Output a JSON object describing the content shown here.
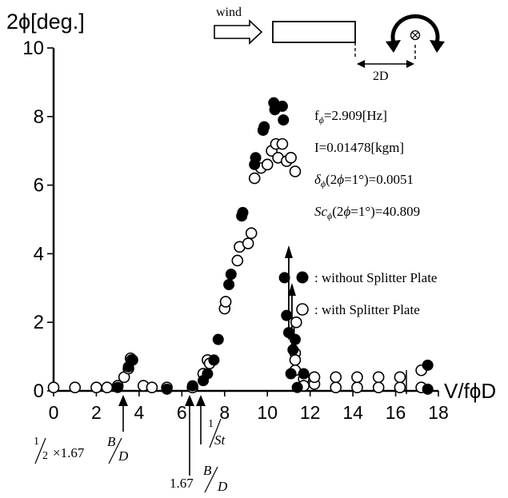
{
  "chart_data": {
    "type": "scatter",
    "ylabel": "2ϕ[deg.]",
    "xlabel": "V/fϕD",
    "xlim": [
      0,
      18
    ],
    "ylim": [
      0,
      10
    ],
    "x_ticks": [
      0,
      2,
      4,
      6,
      8,
      10,
      12,
      14,
      16,
      18
    ],
    "y_ticks": [
      0,
      2,
      4,
      6,
      8,
      10
    ],
    "x_tick_labels": [
      "0",
      "2",
      "4",
      "6",
      "8",
      "10",
      "12",
      "14",
      "16",
      "18"
    ],
    "y_tick_labels": [
      "0",
      "2",
      "4",
      "6",
      "8",
      "10"
    ],
    "grid": false,
    "legend": {
      "placement": "right",
      "entries": [
        ": without Splitter Plate",
        ": with Splitter Plate"
      ]
    },
    "series": [
      {
        "name": ": without Splitter Plate",
        "marker": "filled-circle",
        "points": [
          [
            3.0,
            0.1
          ],
          [
            3.5,
            0.7
          ],
          [
            3.7,
            0.9
          ],
          [
            5.3,
            0.05
          ],
          [
            6.5,
            0.15
          ],
          [
            7.0,
            0.3
          ],
          [
            7.2,
            0.5
          ],
          [
            7.5,
            0.9
          ],
          [
            7.7,
            1.5
          ],
          [
            8.2,
            3.1
          ],
          [
            8.3,
            3.4
          ],
          [
            8.8,
            5.1
          ],
          [
            8.85,
            5.2
          ],
          [
            9.4,
            6.6
          ],
          [
            9.45,
            6.8
          ],
          [
            9.8,
            7.6
          ],
          [
            9.85,
            7.7
          ],
          [
            10.3,
            8.4
          ],
          [
            10.35,
            8.2
          ],
          [
            10.7,
            8.3
          ],
          [
            10.75,
            7.9
          ],
          [
            10.8,
            3.3
          ],
          [
            10.9,
            2.2
          ],
          [
            11.0,
            1.7
          ],
          [
            11.1,
            0.5
          ],
          [
            11.2,
            1.2
          ],
          [
            11.3,
            1.5
          ],
          [
            11.4,
            0.1
          ],
          [
            11.7,
            0.5
          ],
          [
            17.5,
            0.75
          ],
          [
            17.5,
            0.05
          ]
        ]
      },
      {
        "name": ": with Splitter Plate",
        "marker": "open-circle",
        "points": [
          [
            0,
            0.1
          ],
          [
            1,
            0.1
          ],
          [
            2,
            0.1
          ],
          [
            2.5,
            0.1
          ],
          [
            3.0,
            0.15
          ],
          [
            3.3,
            0.4
          ],
          [
            3.5,
            0.65
          ],
          [
            3.6,
            0.95
          ],
          [
            3.65,
            0.9
          ],
          [
            4.2,
            0.15
          ],
          [
            4.6,
            0.1
          ],
          [
            5.3,
            0.1
          ],
          [
            6.5,
            0.1
          ],
          [
            7.0,
            0.5
          ],
          [
            7.2,
            0.9
          ],
          [
            7.3,
            0.8
          ],
          [
            8.0,
            2.4
          ],
          [
            8.05,
            2.6
          ],
          [
            8.6,
            3.8
          ],
          [
            8.7,
            4.2
          ],
          [
            9.1,
            4.3
          ],
          [
            9.25,
            4.6
          ],
          [
            9.4,
            6.2
          ],
          [
            9.7,
            6.5
          ],
          [
            10.0,
            6.6
          ],
          [
            10.2,
            7.0
          ],
          [
            10.4,
            7.2
          ],
          [
            10.5,
            6.8
          ],
          [
            10.7,
            7.2
          ],
          [
            10.9,
            6.7
          ],
          [
            11.1,
            6.8
          ],
          [
            11.3,
            6.4
          ],
          [
            11.35,
            2.0
          ],
          [
            11.3,
            1.1
          ],
          [
            11.3,
            0.9
          ],
          [
            11.3,
            0.6
          ],
          [
            11.7,
            0.35
          ],
          [
            11.7,
            0.15
          ],
          [
            12.2,
            0.2
          ],
          [
            12.2,
            0.4
          ],
          [
            13.2,
            0.1
          ],
          [
            13.2,
            0.4
          ],
          [
            14.2,
            0.1
          ],
          [
            14.2,
            0.4
          ],
          [
            15.2,
            0.1
          ],
          [
            15.2,
            0.4
          ],
          [
            16.2,
            0.1
          ],
          [
            16.2,
            0.4
          ],
          [
            17.2,
            0.1
          ],
          [
            17.2,
            0.6
          ]
        ]
      }
    ],
    "upward_arrows": [
      {
        "x": 11.0,
        "y_from": 1.5,
        "y_to": 4.2
      },
      {
        "x": 11.15,
        "y_from": 1.3,
        "y_to": 3.1
      }
    ],
    "downward_arrows": [
      {
        "x": 11.25,
        "y_from": 2.0,
        "y_to": 0.7
      }
    ],
    "parameters": [
      {
        "label": "fϕ=2.909[Hz]"
      },
      {
        "label": "I=0.01478[kgm]"
      },
      {
        "label": "δϕ(2ϕ=1°)=0.0051"
      },
      {
        "label": "Scϕ(2ϕ=1°)=40.809"
      }
    ],
    "annotations": [
      {
        "x": 3.6,
        "text_parts": [
          "1",
          "2",
          "×1.67",
          "B",
          "D"
        ]
      },
      {
        "x": 7.0,
        "text_parts": [
          "1.67",
          "B",
          "D"
        ]
      },
      {
        "x": 7.6,
        "text_parts": [
          "1",
          "St"
        ]
      }
    ],
    "inset": {
      "wind_label": "wind",
      "dimension_label": "2D"
    }
  }
}
